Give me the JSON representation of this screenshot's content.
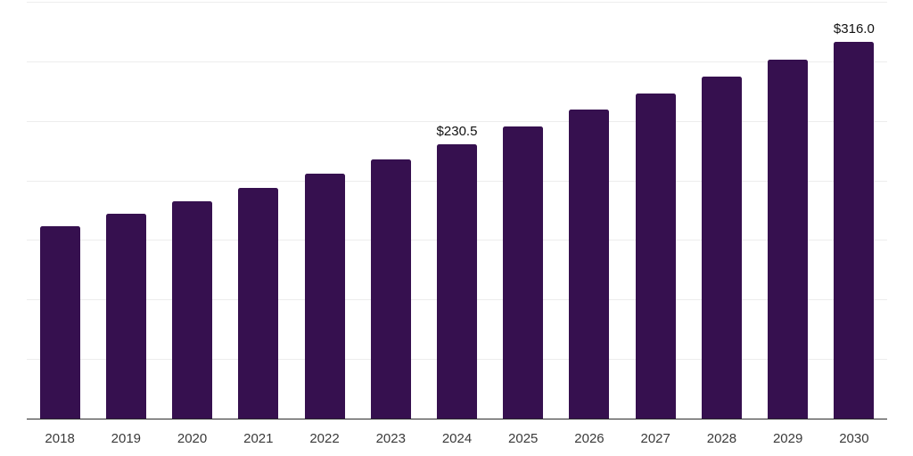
{
  "chart_data": {
    "type": "bar",
    "title": "",
    "xlabel": "",
    "ylabel": "",
    "categories": [
      "2018",
      "2019",
      "2020",
      "2021",
      "2022",
      "2023",
      "2024",
      "2025",
      "2026",
      "2027",
      "2028",
      "2029",
      "2030"
    ],
    "values": [
      161.5,
      172.0,
      182.5,
      194.0,
      206.0,
      217.5,
      230.5,
      245.0,
      259.5,
      273.0,
      287.5,
      301.5,
      316.0
    ],
    "value_labels": [
      {
        "category": "2024",
        "text": "$230.5"
      },
      {
        "category": "2030",
        "text": "$316.0"
      }
    ],
    "ylim": [
      0,
      350
    ],
    "gridline_step": 50,
    "grid": "horizontal",
    "legend": "none",
    "colors": {
      "bar": "#36104F",
      "gridline": "#EDEDED",
      "axis_line": "#2B2B2B",
      "tick_label": "#3A3A3A",
      "value_label": "#111111",
      "background": "#FFFFFF"
    }
  }
}
